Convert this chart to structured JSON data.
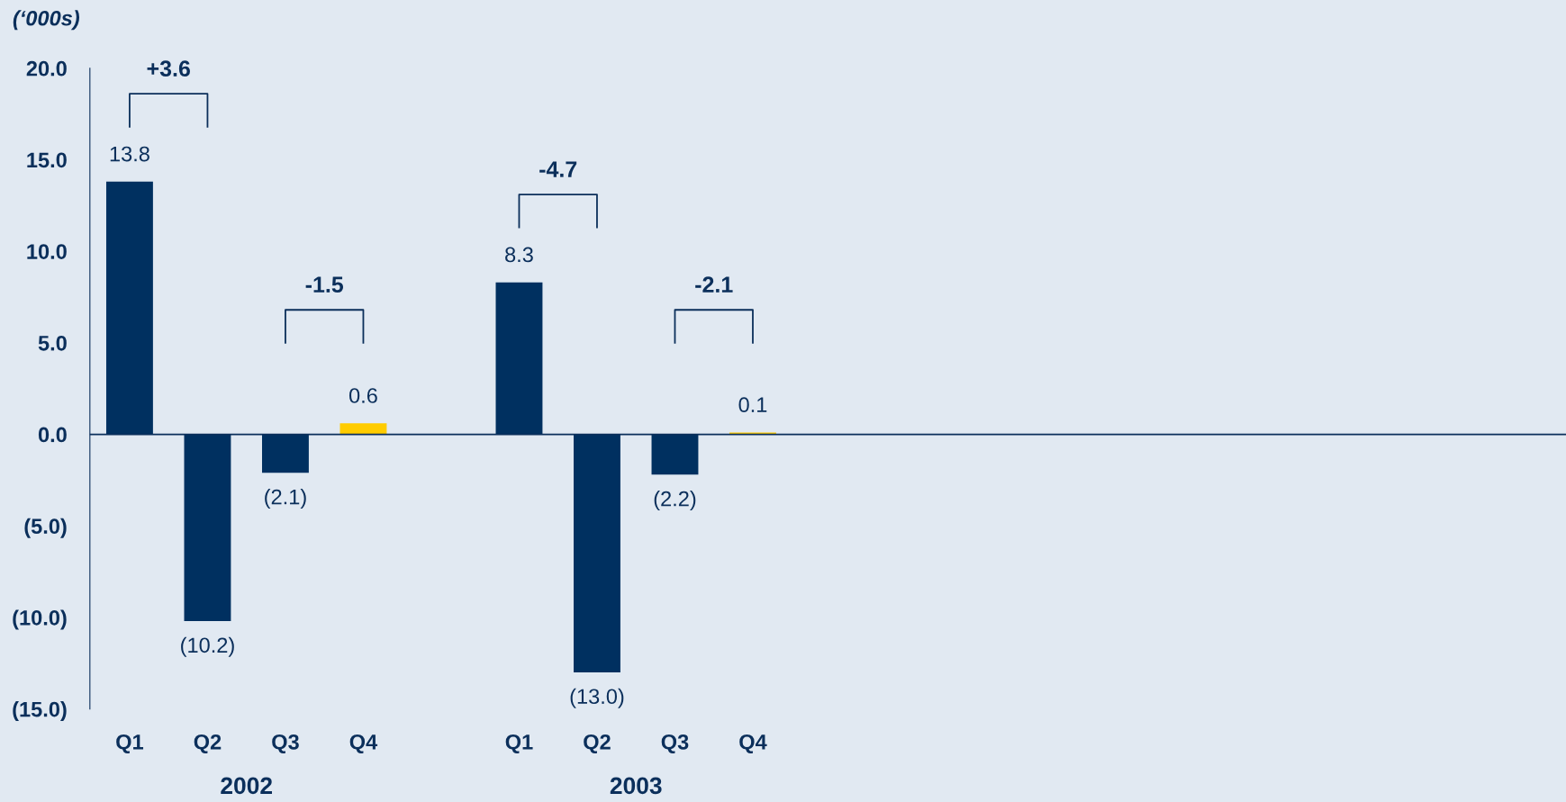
{
  "chart_data": {
    "type": "bar",
    "ylabel": "(‘000s)",
    "categories": [
      "Q1",
      "Q2",
      "Q3",
      "Q4",
      null,
      "Q1",
      "Q2",
      "Q3",
      "Q4"
    ],
    "values": [
      13.8,
      -10.2,
      -2.1,
      0.6,
      null,
      8.3,
      -13.0,
      -2.2,
      0.1
    ],
    "colors": [
      "#003060",
      "#003060",
      "#003060",
      "#ffcc00",
      null,
      "#003060",
      "#003060",
      "#003060",
      "#ffcc00"
    ],
    "value_labels": [
      "13.8",
      "(10.2)",
      "(2.1)",
      "0.6",
      null,
      "8.3",
      "(13.0)",
      "(2.2)",
      "0.1"
    ],
    "ylim": [
      -15,
      20
    ],
    "yticks": [
      {
        "value": 20,
        "label": "20.0"
      },
      {
        "value": 15,
        "label": "15.0"
      },
      {
        "value": 10,
        "label": "10.0"
      },
      {
        "value": 5,
        "label": "5.0"
      },
      {
        "value": 0,
        "label": "0.0"
      },
      {
        "value": -5,
        "label": "(5.0)"
      },
      {
        "value": -10,
        "label": "(10.0)"
      },
      {
        "value": -15,
        "label": "(15.0)"
      }
    ],
    "annotations": [
      "+3.6",
      "-1.5",
      "-4.7",
      "-2.1",
      "2002",
      "2003"
    ],
    "grid": false,
    "legend": false
  }
}
